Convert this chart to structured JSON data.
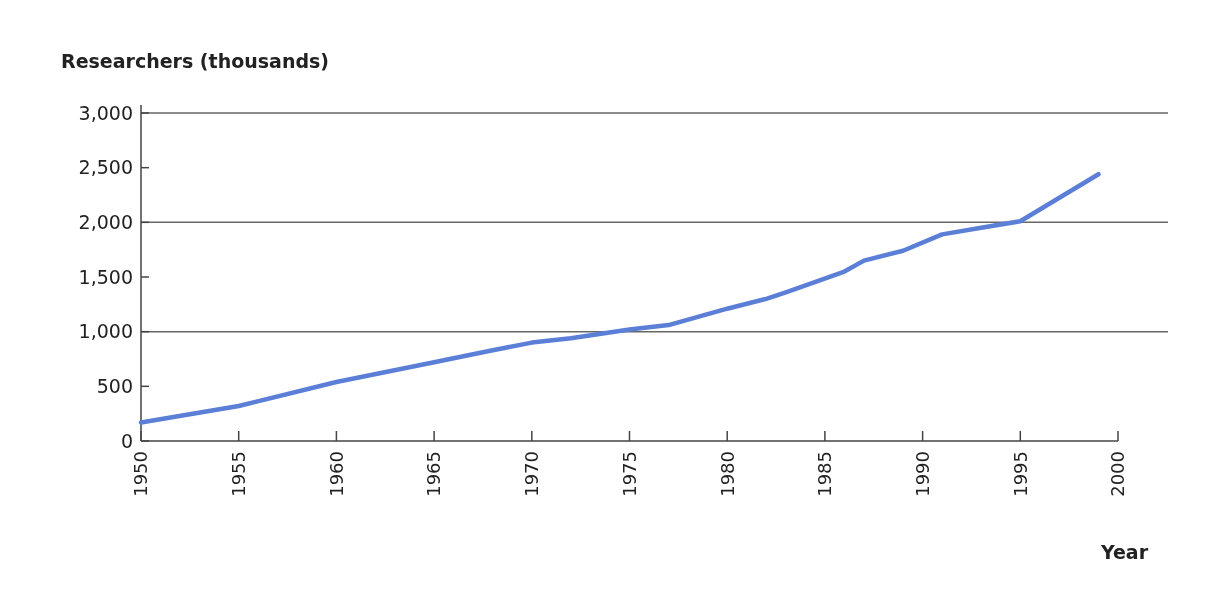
{
  "chart_data": {
    "type": "line",
    "ylabel": "Researchers (thousands)",
    "xlabel": "Year",
    "x": [
      1950,
      1955,
      1960,
      1965,
      1968,
      1970,
      1972,
      1975,
      1977,
      1980,
      1982,
      1983,
      1986,
      1987,
      1989,
      1991,
      1993,
      1995,
      1999
    ],
    "series": [
      {
        "color": "#5b7fd6",
        "values": [
          170,
          320,
          540,
          720,
          830,
          900,
          940,
          1020,
          1060,
          1210,
          1300,
          1360,
          1550,
          1650,
          1740,
          1890,
          1950,
          2010,
          2440
        ]
      }
    ],
    "xlim": [
      1950,
      2000
    ],
    "xticks": [
      1950,
      1955,
      1960,
      1965,
      1970,
      1975,
      1980,
      1985,
      1990,
      1995,
      2000
    ],
    "ylim": [
      0,
      3000
    ],
    "yticks": [
      0,
      {
        "value": 500,
        "label": "500"
      },
      {
        "value": 1000,
        "label": "1,000"
      },
      {
        "value": 1500,
        "label": "1,500"
      },
      {
        "value": 2000,
        "label": "2,000"
      },
      {
        "value": 2500,
        "label": "2,500"
      },
      {
        "value": 3000,
        "label": "3,000"
      }
    ],
    "grid": "y",
    "marker": "none",
    "line_style": "solid"
  }
}
